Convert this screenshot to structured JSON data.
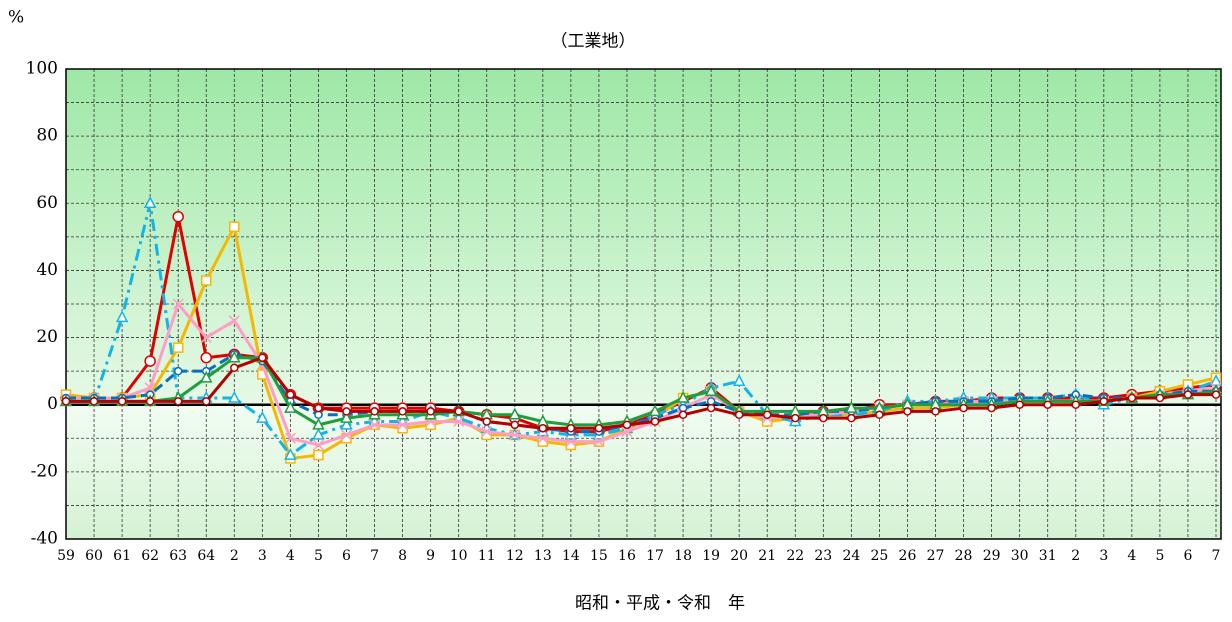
{
  "chart_data": {
    "type": "line",
    "title": "（工業地）",
    "y_unit": "%",
    "x_label": "昭和・平成・令和　年",
    "categories": [
      "59",
      "60",
      "61",
      "62",
      "63",
      "64",
      "2",
      "3",
      "4",
      "5",
      "6",
      "7",
      "8",
      "9",
      "10",
      "11",
      "12",
      "13",
      "14",
      "15",
      "16",
      "17",
      "18",
      "19",
      "20",
      "21",
      "22",
      "23",
      "24",
      "25",
      "26",
      "27",
      "28",
      "29",
      "30",
      "31",
      "2",
      "3",
      "4",
      "5",
      "6",
      "7"
    ],
    "ylim": [
      -40,
      100
    ],
    "yticks": [
      -40,
      -20,
      0,
      20,
      40,
      60,
      80,
      100
    ],
    "grid": true,
    "series": [
      {
        "color": "#e00000",
        "marker": "circle",
        "dash": "solid",
        "values": [
          2,
          2,
          2,
          13,
          56,
          14,
          15,
          14,
          3,
          -1,
          -1,
          -1,
          -1,
          -1,
          -2,
          -3,
          -4,
          -7,
          -8,
          -8,
          -6,
          -3,
          1,
          5,
          -2,
          -4,
          -3,
          -2,
          -2,
          0,
          0,
          1,
          1,
          2,
          2,
          2,
          2,
          2,
          3,
          4,
          5,
          6
        ]
      },
      {
        "color": "#f5b800",
        "marker": "square",
        "dash": "solid",
        "values": [
          3,
          2,
          2,
          3,
          17,
          37,
          53,
          9,
          -16,
          -15,
          -10,
          -6,
          -7,
          -6,
          -4,
          -9,
          -9,
          -11,
          -12,
          -11,
          -7,
          -4,
          2,
          4,
          -2,
          -5,
          -4,
          -3,
          -3,
          -2,
          -1,
          -1,
          0,
          0,
          1,
          1,
          1,
          1,
          2,
          4,
          6,
          8
        ]
      },
      {
        "color": "#14b4e6",
        "marker": "triangle",
        "dash": "dashdot",
        "values": [
          1,
          1,
          26,
          60,
          2,
          2,
          2,
          -4,
          -15,
          -9,
          -6,
          -5,
          -5,
          -2,
          -4,
          -7,
          -9,
          -8,
          -9,
          -9,
          -7,
          -3,
          0,
          5,
          7,
          -3,
          -5,
          -3,
          -3,
          -2,
          1,
          1,
          2,
          2,
          2,
          2,
          3,
          0,
          2,
          3,
          4,
          7
        ]
      },
      {
        "color": "#ff9ec4",
        "marker": "cross",
        "dash": "solid",
        "values": [
          2,
          2,
          2,
          5,
          30,
          20,
          25,
          12,
          -10,
          -12,
          -9,
          -6,
          -6,
          -5,
          -5,
          -8,
          -9,
          -10,
          -11,
          -11,
          -8,
          -5,
          -1,
          3,
          -2,
          -4,
          -3,
          -3,
          -2,
          -1,
          0,
          0,
          1,
          1,
          1,
          1,
          1,
          1,
          2,
          3,
          4,
          5
        ]
      },
      {
        "color": "#0a6ebe",
        "marker": "dot",
        "dash": "dashed",
        "values": [
          2,
          2,
          2,
          3,
          10,
          10,
          15,
          13,
          1,
          -3,
          -3,
          -2,
          -2,
          -2,
          -2,
          -5,
          -6,
          -7,
          -8,
          -8,
          -6,
          -4,
          -1,
          1,
          -2,
          -3,
          -3,
          -2,
          -2,
          -1,
          0,
          1,
          1,
          1,
          2,
          2,
          3,
          2,
          2,
          3,
          4,
          4
        ]
      },
      {
        "color": "#1e9e3c",
        "marker": "triangle",
        "dash": "solid",
        "values": [
          1,
          1,
          1,
          1,
          2,
          8,
          14,
          14,
          -1,
          -6,
          -4,
          -3,
          -3,
          -3,
          -2,
          -3,
          -3,
          -5,
          -6,
          -6,
          -5,
          -2,
          2,
          4,
          -2,
          -2,
          -2,
          -2,
          -1,
          -1,
          0,
          0,
          0,
          0,
          1,
          1,
          1,
          1,
          2,
          3,
          3,
          4
        ]
      },
      {
        "color": "#b40000",
        "marker": "dot",
        "dash": "solid",
        "values": [
          1,
          1,
          1,
          1,
          1,
          1,
          11,
          14,
          3,
          -1,
          -2,
          -2,
          -2,
          -2,
          -2,
          -5,
          -6,
          -7,
          -7,
          -7,
          -6,
          -5,
          -3,
          -1,
          -3,
          -3,
          -4,
          -4,
          -4,
          -3,
          -2,
          -2,
          -1,
          -1,
          0,
          0,
          0,
          1,
          2,
          2,
          3,
          3
        ]
      }
    ]
  }
}
